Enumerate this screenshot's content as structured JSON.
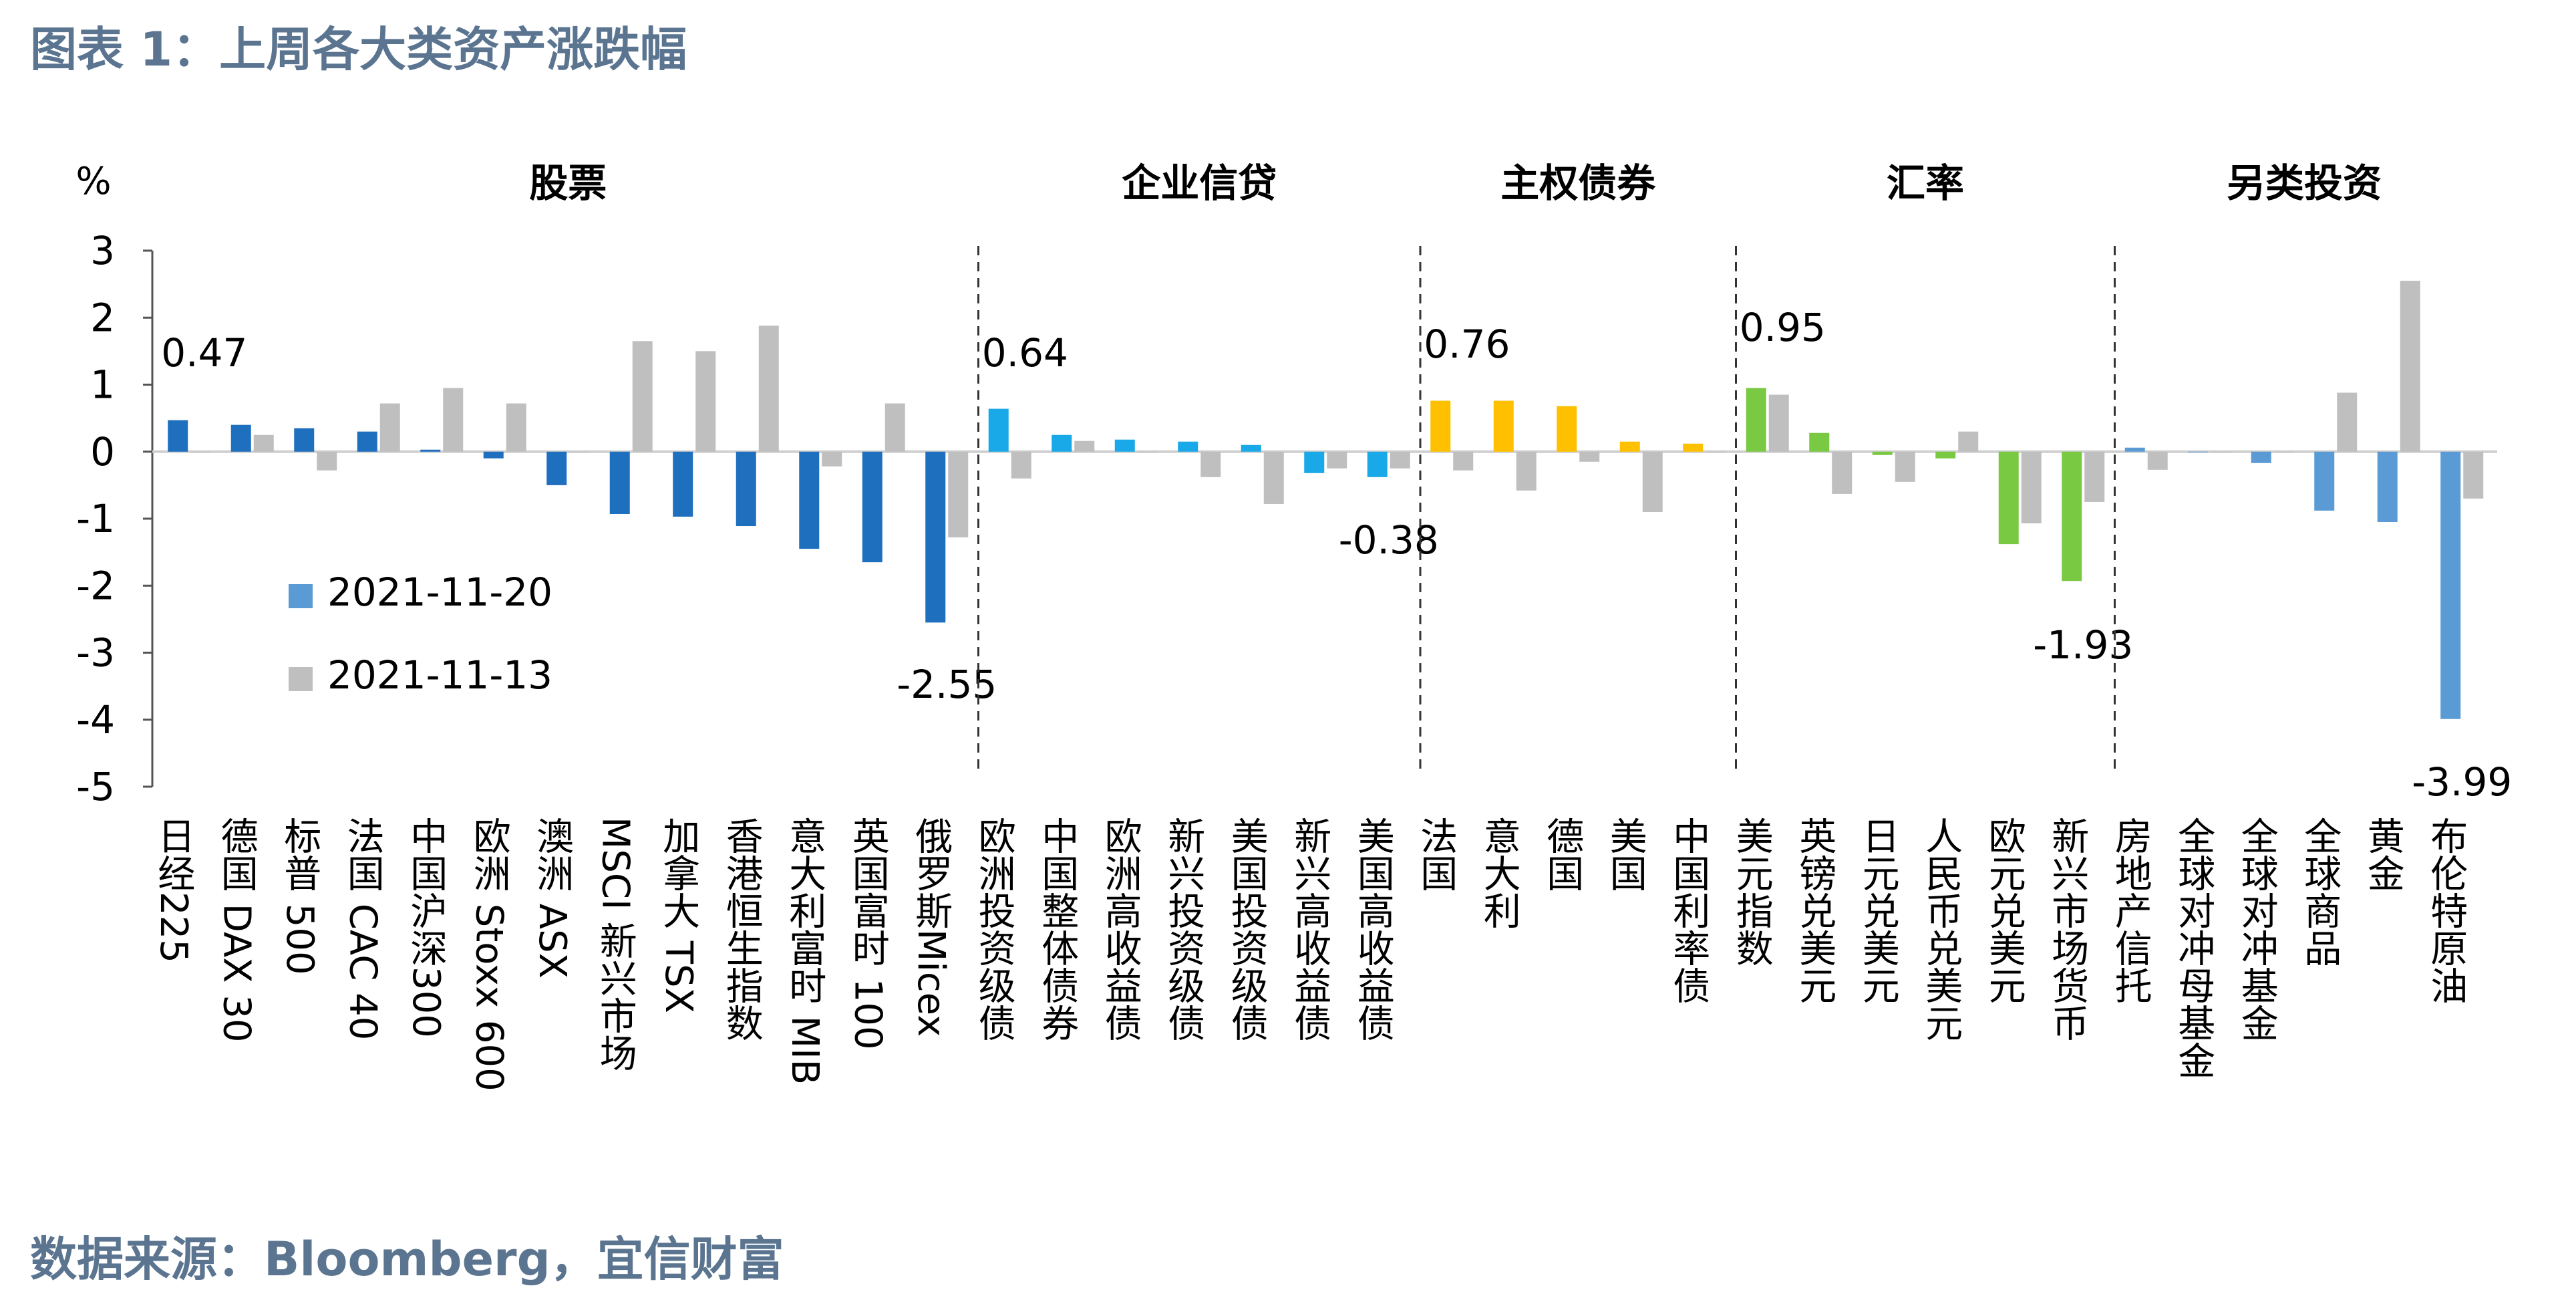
{
  "title": "图表 1：上周各大类资产涨跌幅",
  "source": "数据来源：Bloomberg，宜信财富",
  "chart_data": {
    "type": "bar",
    "ylabel": "%",
    "ylim": [
      -5,
      3
    ],
    "yticks": [
      "3",
      "2",
      "1",
      "0",
      "-1",
      "-2",
      "-3",
      "-4",
      "-5"
    ],
    "grid": false,
    "legend_position": "lower-left",
    "series": [
      {
        "name": "2021-11-20"
      },
      {
        "name": "2021-11-13",
        "color": "#bfbfbf"
      }
    ],
    "groups": [
      {
        "label": "股票",
        "color": "#1f6fbf",
        "categories": [
          "日经225",
          "德国 DAX 30",
          "标普 500",
          "法国 CAC 40",
          "中国沪深300",
          "欧洲 Stoxx 600",
          "澳洲 ASX",
          "MSCI 新兴市场",
          "加拿大 TSX",
          "香港恒生指数",
          "意大利富时 MIB",
          "英国富时 100",
          "俄罗斯Micex"
        ],
        "values_current": [
          0.47,
          0.4,
          0.35,
          0.3,
          0.03,
          -0.1,
          -0.5,
          -0.93,
          -0.97,
          -1.11,
          -1.45,
          -1.65,
          -2.55
        ],
        "values_previous": [
          0.0,
          0.25,
          -0.28,
          0.72,
          0.95,
          0.72,
          0.0,
          1.65,
          1.5,
          1.88,
          -0.22,
          0.72,
          -1.28
        ]
      },
      {
        "label": "企业信贷",
        "color": "#19a9e8",
        "categories": [
          "欧洲投资级债",
          "中国整体债券",
          "欧洲高收益债",
          "新兴投资级债",
          "美国投资级债",
          "新兴高收益债",
          "美国高收益债"
        ],
        "values_current": [
          0.64,
          0.25,
          0.18,
          0.15,
          0.1,
          -0.32,
          -0.38
        ],
        "values_previous": [
          -0.4,
          0.16,
          0.0,
          -0.38,
          -0.78,
          -0.25,
          -0.25
        ]
      },
      {
        "label": "主权债券",
        "color": "#ffc000",
        "categories": [
          "法国",
          "意大利",
          "德国",
          "美国",
          "中国利率债"
        ],
        "values_current": [
          0.76,
          0.76,
          0.68,
          0.15,
          0.12
        ],
        "values_previous": [
          -0.28,
          -0.58,
          -0.15,
          -0.9,
          0.0
        ]
      },
      {
        "label": "汇率",
        "color": "#7ac943",
        "categories": [
          "美元指数",
          "英镑兑美元",
          "日元兑美元",
          "人民币兑美元",
          "欧元兑美元",
          "新兴市场货币"
        ],
        "values_current": [
          0.95,
          0.28,
          -0.05,
          -0.1,
          -1.38,
          -1.93
        ],
        "values_previous": [
          0.85,
          -0.63,
          -0.45,
          0.3,
          -1.07,
          -0.75
        ]
      },
      {
        "label": "另类投资",
        "color": "#5b9bd5",
        "categories": [
          "房地产信托",
          "全球对冲母基金",
          "全球对冲基金",
          "全球商品",
          "黄金",
          "布伦特原油"
        ],
        "values_current": [
          0.06,
          0.0,
          -0.17,
          -0.88,
          -1.05,
          -3.99
        ],
        "values_previous": [
          -0.27,
          0.0,
          0.0,
          0.88,
          2.55,
          -0.7
        ]
      }
    ],
    "annotations": [
      "0.47",
      "-2.55",
      "0.64",
      "-0.38",
      "0.76",
      "0.95",
      "-1.93",
      "-3.99"
    ]
  }
}
